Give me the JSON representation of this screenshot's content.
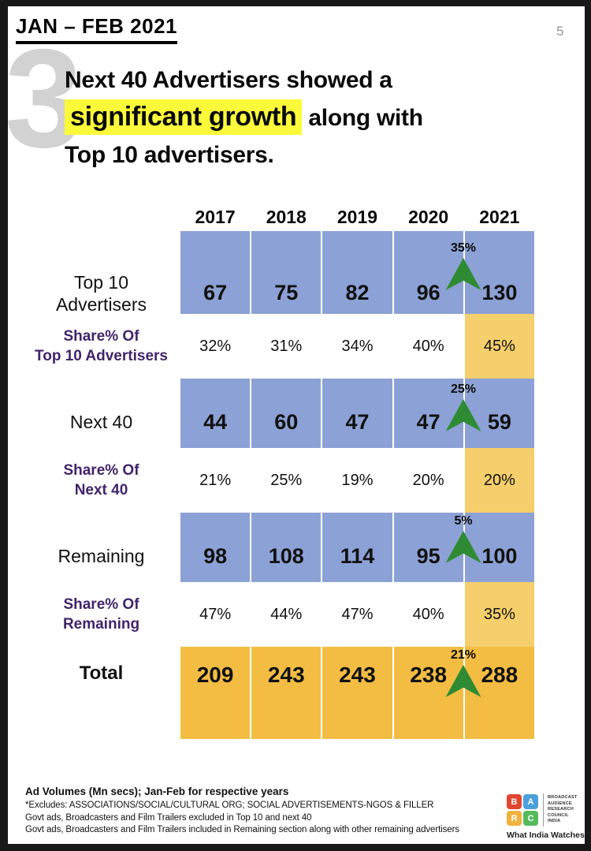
{
  "header": {
    "title": "JAN – FEB 2021",
    "page_number": "5",
    "section_number": "3"
  },
  "title": {
    "line1": "Next 40 Advertisers showed a",
    "highlight": "significant growth",
    "line2_rest": " along with",
    "line3": "Top 10 advertisers."
  },
  "chart_data": {
    "type": "table",
    "title": "Ad volumes of Top 10 / Next 40 / Remaining advertisers, Jan-Feb",
    "years": [
      "2017",
      "2018",
      "2019",
      "2020",
      "2021"
    ],
    "rows": [
      {
        "label_lines": [
          "Top 10",
          "Advertisers"
        ],
        "type": "volume",
        "values": [
          "67",
          "75",
          "82",
          "96",
          "130"
        ],
        "growth": "35%"
      },
      {
        "label_lines": [
          "Share% Of",
          "Top 10 Advertisers"
        ],
        "type": "share",
        "values": [
          "32%",
          "31%",
          "34%",
          "40%",
          "45%"
        ]
      },
      {
        "label_lines": [
          "Next 40"
        ],
        "type": "volume",
        "values": [
          "44",
          "60",
          "47",
          "47",
          "59"
        ],
        "growth": "25%"
      },
      {
        "label_lines": [
          "Share% Of",
          "Next 40"
        ],
        "type": "share",
        "values": [
          "21%",
          "25%",
          "19%",
          "20%",
          "20%"
        ]
      },
      {
        "label_lines": [
          "Remaining"
        ],
        "type": "volume",
        "values": [
          "98",
          "108",
          "114",
          "95",
          "100"
        ],
        "growth": "5%"
      },
      {
        "label_lines": [
          "Share% Of",
          "Remaining"
        ],
        "type": "share",
        "values": [
          "47%",
          "44%",
          "47%",
          "40%",
          "35%"
        ]
      },
      {
        "label_lines": [
          "Total"
        ],
        "type": "total",
        "values": [
          "209",
          "243",
          "243",
          "238",
          "288"
        ],
        "growth": "21%"
      }
    ],
    "units": "Mn secs"
  },
  "footnotes": {
    "line1": "Ad Volumes (Mn secs); Jan-Feb for respective years",
    "line2": "*Excludes: ASSOCIATIONS/SOCIAL/CULTURAL ORG; SOCIAL ADVERTISEMENTS-NGOS & FILLER",
    "line3": "Govt ads, Broadcasters and Film Trailers excluded in Top 10 and  next 40",
    "line4": "Govt ads, Broadcasters and Film Trailers included in Remaining section along with other remaining advertisers"
  },
  "logo": {
    "letters": [
      "B",
      "A",
      "R",
      "C"
    ],
    "letter_colors": [
      "#e2452f",
      "#4ba0db",
      "#f0b23e",
      "#55bb5c"
    ],
    "org_lines": [
      "BROADCAST",
      "AUDIENCE",
      "RESEARCH",
      "COUNCIL",
      "INDIA"
    ],
    "tagline": "What India Watches™"
  },
  "colors": {
    "volume_row": "#8ca1d5",
    "share_highlight": "#f5cf6b",
    "total_row": "#f3bd44",
    "growth_arrow": "#2e8b33",
    "share_label": "#41246b",
    "title_highlight": "#fafa3b"
  }
}
